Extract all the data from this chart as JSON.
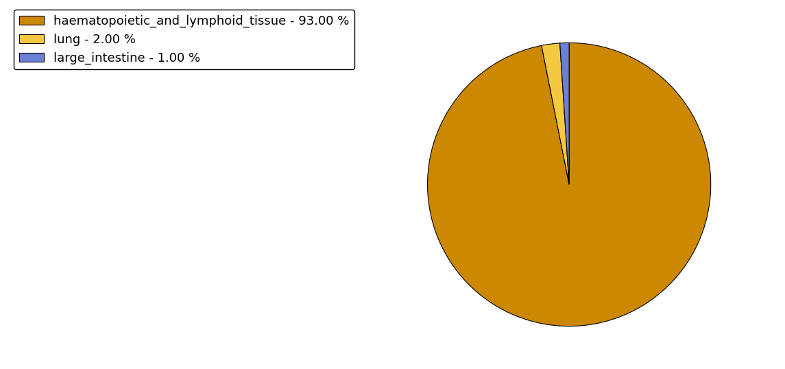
{
  "labels": [
    "haematopoietic_and_lymphoid_tissue - 93.00 %",
    "lung - 2.00 %",
    "large_intestine - 1.00 %"
  ],
  "sizes": [
    93.0,
    2.0,
    1.0
  ],
  "colors": [
    "#CC8800",
    "#F5C842",
    "#6B7FD4"
  ],
  "background_color": "#ffffff",
  "legend_fontsize": 13,
  "startangle": 90,
  "counterclock": false
}
